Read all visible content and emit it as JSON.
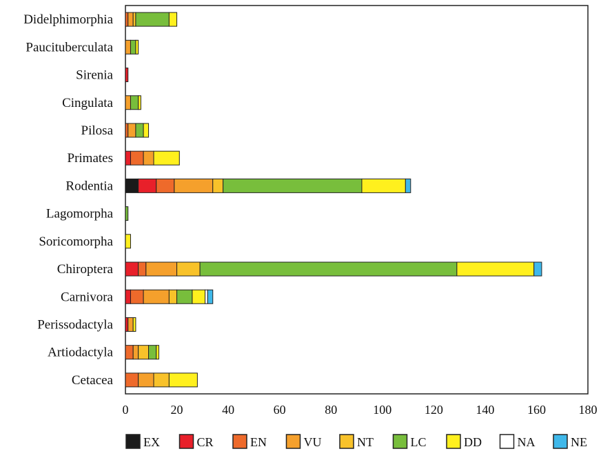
{
  "chart_data": {
    "type": "bar",
    "orientation": "horizontal",
    "stacked": true,
    "title": "",
    "xlabel": "",
    "ylabel": "",
    "xlim": [
      0,
      180
    ],
    "xticks": [
      "0",
      "20",
      "40",
      "60",
      "80",
      "100",
      "120",
      "140",
      "160",
      "180"
    ],
    "grid": false,
    "legend_position": "bottom",
    "categories": [
      "Didelphimorphia",
      "Paucituberculata",
      "Sirenia",
      "Cingulata",
      "Pilosa",
      "Primates",
      "Rodentia",
      "Lagomorpha",
      "Soricomorpha",
      "Chiroptera",
      "Carnivora",
      "Perissodactyla",
      "Artiodactyla",
      "Cetacea"
    ],
    "series": [
      {
        "name": "EX",
        "color": "#1a1a1a",
        "values": [
          0,
          0,
          0,
          0,
          0,
          0,
          5,
          0,
          0,
          0,
          0,
          0,
          0,
          0
        ]
      },
      {
        "name": "CR",
        "color": "#e8202a",
        "values": [
          0,
          0,
          1,
          0,
          0,
          2,
          7,
          0,
          0,
          5,
          2,
          1,
          0,
          0
        ]
      },
      {
        "name": "EN",
        "color": "#ee6a2b",
        "values": [
          1,
          0,
          0,
          0,
          1,
          5,
          7,
          0,
          0,
          3,
          5,
          0,
          3,
          5
        ]
      },
      {
        "name": "VU",
        "color": "#f5a02c",
        "values": [
          2,
          2,
          0,
          2,
          3,
          4,
          15,
          0,
          0,
          12,
          10,
          2,
          2,
          6
        ]
      },
      {
        "name": "NT",
        "color": "#f8c22a",
        "values": [
          1,
          0,
          0,
          0,
          0,
          0,
          4,
          0,
          0,
          9,
          3,
          0,
          4,
          6
        ]
      },
      {
        "name": "LC",
        "color": "#78be3c",
        "values": [
          13,
          2,
          0,
          3,
          3,
          0,
          54,
          1,
          0,
          100,
          6,
          0,
          3,
          0
        ]
      },
      {
        "name": "DD",
        "color": "#fff01e",
        "values": [
          3,
          1,
          0,
          1,
          2,
          10,
          17,
          0,
          2,
          30,
          5,
          1,
          1,
          11
        ]
      },
      {
        "name": "NA",
        "color": "#ffffff",
        "values": [
          0,
          0,
          0,
          0,
          0,
          0,
          0,
          0,
          0,
          0,
          1,
          0,
          0,
          0
        ]
      },
      {
        "name": "NE",
        "color": "#3fb8ea",
        "values": [
          0,
          0,
          0,
          0,
          0,
          0,
          2,
          0,
          0,
          3,
          2,
          0,
          0,
          0
        ]
      }
    ]
  }
}
